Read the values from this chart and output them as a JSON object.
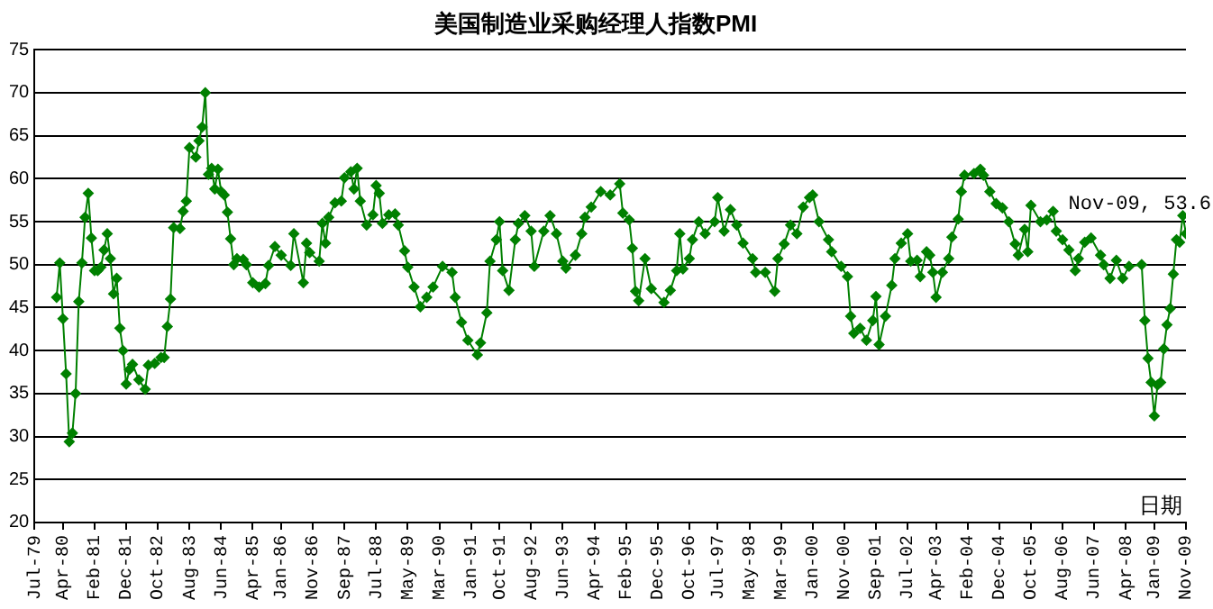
{
  "chart_data": {
    "type": "line",
    "title": "美国制造业采购经理人指数PMI",
    "xlabel": "日期",
    "xlim": [
      "1979-07",
      "2009-11"
    ],
    "xticks": [
      {
        "value": "1979-07",
        "label": "Jul-79"
      },
      {
        "value": "1980-04",
        "label": "Apr-80"
      },
      {
        "value": "1981-02",
        "label": "Feb-81"
      },
      {
        "value": "1981-12",
        "label": "Dec-81"
      },
      {
        "value": "1982-10",
        "label": "Oct-82"
      },
      {
        "value": "1983-08",
        "label": "Aug-83"
      },
      {
        "value": "1984-06",
        "label": "Jun-84"
      },
      {
        "value": "1985-04",
        "label": "Apr-85"
      },
      {
        "value": "1986-01",
        "label": "Jan-86"
      },
      {
        "value": "1986-11",
        "label": "Nov-86"
      },
      {
        "value": "1987-09",
        "label": "Sep-87"
      },
      {
        "value": "1988-07",
        "label": "Jul-88"
      },
      {
        "value": "1989-05",
        "label": "May-89"
      },
      {
        "value": "1990-03",
        "label": "Mar-90"
      },
      {
        "value": "1991-01",
        "label": "Jan-91"
      },
      {
        "value": "1991-10",
        "label": "Oct-91"
      },
      {
        "value": "1992-08",
        "label": "Aug-92"
      },
      {
        "value": "1993-06",
        "label": "Jun-93"
      },
      {
        "value": "1994-04",
        "label": "Apr-94"
      },
      {
        "value": "1995-02",
        "label": "Feb-95"
      },
      {
        "value": "1995-12",
        "label": "Dec-95"
      },
      {
        "value": "1996-10",
        "label": "Oct-96"
      },
      {
        "value": "1997-07",
        "label": "Jul-97"
      },
      {
        "value": "1998-05",
        "label": "May-98"
      },
      {
        "value": "1999-03",
        "label": "Mar-99"
      },
      {
        "value": "2000-01",
        "label": "Jan-00"
      },
      {
        "value": "2000-11",
        "label": "Nov-00"
      },
      {
        "value": "2001-09",
        "label": "Sep-01"
      },
      {
        "value": "2002-07",
        "label": "Jul-02"
      },
      {
        "value": "2003-04",
        "label": "Apr-03"
      },
      {
        "value": "2004-02",
        "label": "Feb-04"
      },
      {
        "value": "2004-12",
        "label": "Dec-04"
      },
      {
        "value": "2005-10",
        "label": "Oct-05"
      },
      {
        "value": "2006-08",
        "label": "Aug-06"
      },
      {
        "value": "2007-06",
        "label": "Jun-07"
      },
      {
        "value": "2008-04",
        "label": "Apr-08"
      },
      {
        "value": "2009-01",
        "label": "Jan-09"
      },
      {
        "value": "2009-11",
        "label": "Nov-09"
      }
    ],
    "ylim": [
      20,
      75
    ],
    "yticks": [
      20,
      25,
      30,
      35,
      40,
      45,
      50,
      55,
      60,
      65,
      70,
      75
    ],
    "grid": "y",
    "legend": false,
    "marker": "diamond",
    "line_style": "solid",
    "annotations": [
      {
        "text": "Nov-09, 53.6",
        "x": "2009-11",
        "y": 53.6
      }
    ],
    "series": [
      {
        "color": "#008000",
        "x": [
          "1980-02",
          "1980-03",
          "1980-04",
          "1980-05",
          "1980-06",
          "1980-07",
          "1980-08",
          "1980-09",
          "1980-10",
          "1980-11",
          "1980-12",
          "1981-01",
          "1981-02",
          "1981-03",
          "1981-04",
          "1981-05",
          "1981-06",
          "1981-07",
          "1981-08",
          "1981-09",
          "1981-10",
          "1981-11",
          "1981-12",
          "1982-01",
          "1982-02",
          "1982-04",
          "1982-06",
          "1982-07",
          "1982-09",
          "1982-11",
          "1982-12",
          "1983-01",
          "1983-02",
          "1983-03",
          "1983-05",
          "1983-06",
          "1983-07",
          "1983-08",
          "1983-10",
          "1983-11",
          "1983-12",
          "1984-01",
          "1984-02",
          "1984-03",
          "1984-04",
          "1984-05",
          "1984-06",
          "1984-07",
          "1984-08",
          "1984-09",
          "1984-10",
          "1984-11",
          "1985-01",
          "1985-02",
          "1985-04",
          "1985-06",
          "1985-08",
          "1985-09",
          "1985-11",
          "1986-01",
          "1986-04",
          "1986-05",
          "1986-08",
          "1986-09",
          "1986-10",
          "1987-01",
          "1987-02",
          "1987-03",
          "1987-04",
          "1987-06",
          "1987-08",
          "1987-09",
          "1987-11",
          "1987-12",
          "1988-01",
          "1988-02",
          "1988-04",
          "1988-06",
          "1988-07",
          "1988-08",
          "1988-09",
          "1988-11",
          "1989-01",
          "1989-02",
          "1989-04",
          "1989-05",
          "1989-07",
          "1989-09",
          "1989-11",
          "1990-01",
          "1990-04",
          "1990-07",
          "1990-08",
          "1990-10",
          "1990-12",
          "1991-03",
          "1991-04",
          "1991-06",
          "1991-07",
          "1991-09",
          "1991-10",
          "1991-11",
          "1992-01",
          "1992-03",
          "1992-04",
          "1992-06",
          "1992-08",
          "1992-09",
          "1992-12",
          "1993-02",
          "1993-04",
          "1993-06",
          "1993-07",
          "1993-10",
          "1993-12",
          "1994-01",
          "1994-03",
          "1994-06",
          "1994-09",
          "1994-12",
          "1995-01",
          "1995-03",
          "1995-04",
          "1995-05",
          "1995-06",
          "1995-08",
          "1995-10",
          "1996-02",
          "1996-04",
          "1996-06",
          "1996-07",
          "1996-08",
          "1996-10",
          "1996-11",
          "1997-01",
          "1997-03",
          "1997-06",
          "1997-07",
          "1997-09",
          "1997-11",
          "1998-01",
          "1998-03",
          "1998-06",
          "1998-07",
          "1998-10",
          "1999-01",
          "1999-02",
          "1999-04",
          "1999-06",
          "1999-08",
          "1999-10",
          "1999-12",
          "2000-01",
          "2000-03",
          "2000-06",
          "2000-07",
          "2000-10",
          "2000-12",
          "2001-01",
          "2001-02",
          "2001-04",
          "2001-06",
          "2001-08",
          "2001-09",
          "2001-10",
          "2001-12",
          "2002-02",
          "2002-03",
          "2002-05",
          "2002-07",
          "2002-08",
          "2002-10",
          "2002-11",
          "2003-01",
          "2003-02",
          "2003-03",
          "2003-04",
          "2003-06",
          "2003-08",
          "2003-09",
          "2003-11",
          "2003-12",
          "2004-01",
          "2004-04",
          "2004-06",
          "2004-07",
          "2004-09",
          "2004-11",
          "2005-01",
          "2005-03",
          "2005-05",
          "2005-06",
          "2005-08",
          "2005-09",
          "2005-10",
          "2006-01",
          "2006-03",
          "2006-05",
          "2006-06",
          "2006-08",
          "2006-10",
          "2006-12",
          "2007-01",
          "2007-03",
          "2007-05",
          "2007-08",
          "2007-09",
          "2007-11",
          "2008-01",
          "2008-03",
          "2008-05",
          "2008-09",
          "2008-10",
          "2008-11",
          "2008-12",
          "2009-01",
          "2009-02",
          "2009-03",
          "2009-04",
          "2009-05",
          "2009-06",
          "2009-07",
          "2009-08",
          "2009-09",
          "2009-10",
          "2009-11"
        ],
        "values": [
          46.2,
          50.2,
          43.7,
          37.3,
          29.4,
          30.4,
          35.0,
          45.7,
          50.2,
          55.5,
          58.3,
          53.1,
          49.3,
          49.3,
          49.7,
          51.7,
          53.6,
          50.7,
          46.6,
          48.4,
          42.6,
          40.0,
          36.1,
          37.8,
          38.4,
          36.6,
          35.5,
          38.3,
          38.5,
          39.2,
          39.2,
          42.8,
          46.0,
          54.3,
          54.2,
          56.2,
          57.4,
          63.6,
          62.5,
          64.4,
          66.0,
          70.0,
          60.5,
          61.2,
          58.8,
          61.1,
          58.5,
          58.1,
          56.1,
          53.0,
          50.0,
          50.7,
          50.6,
          50.0,
          47.9,
          47.4,
          47.8,
          49.9,
          52.1,
          51.1,
          49.9,
          53.6,
          47.9,
          52.5,
          51.4,
          50.4,
          54.8,
          52.5,
          55.5,
          57.2,
          57.4,
          60.1,
          60.8,
          58.8,
          61.2,
          57.4,
          54.6,
          55.8,
          59.2,
          58.3,
          54.8,
          55.8,
          55.9,
          54.6,
          51.6,
          49.7,
          47.4,
          45.1,
          46.2,
          47.4,
          49.8,
          49.1,
          46.2,
          43.3,
          41.2,
          39.5,
          40.9,
          44.4,
          50.4,
          52.9,
          55.0,
          49.3,
          47.0,
          52.9,
          54.8,
          55.7,
          53.9,
          49.8,
          53.9,
          55.7,
          53.6,
          50.4,
          49.6,
          51.1,
          53.6,
          55.5,
          56.7,
          58.5,
          58.1,
          59.4,
          56.0,
          55.2,
          51.9,
          46.9,
          45.8,
          50.7,
          47.2,
          45.6,
          47.0,
          49.3,
          53.6,
          49.5,
          50.7,
          52.9,
          55.0,
          53.6,
          55.0,
          57.8,
          53.9,
          56.4,
          54.6,
          52.5,
          50.7,
          49.1,
          49.1,
          46.9,
          50.7,
          52.4,
          54.6,
          53.6,
          56.7,
          57.8,
          58.1,
          55.0,
          52.9,
          51.5,
          49.8,
          48.6,
          44.0,
          42.0,
          42.6,
          41.2,
          43.5,
          46.3,
          40.7,
          44.0,
          47.6,
          50.7,
          52.5,
          53.6,
          50.4,
          50.5,
          48.6,
          51.5,
          51.1,
          49.1,
          46.2,
          49.1,
          50.7,
          53.2,
          55.3,
          58.5,
          60.4,
          60.6,
          61.1,
          60.4,
          58.5,
          57.1,
          56.6,
          55.0,
          52.4,
          51.1,
          54.1,
          51.5,
          56.9,
          55.0,
          55.2,
          56.2,
          53.9,
          52.9,
          51.7,
          49.3,
          50.7,
          52.6,
          53.1,
          51.1,
          50.0,
          48.4,
          50.5,
          48.4,
          49.8,
          50.0,
          43.5,
          39.1,
          36.3,
          32.4,
          36.0,
          36.3,
          40.2,
          43.0,
          44.9,
          48.9,
          52.9,
          52.6,
          55.7,
          53.6
        ]
      }
    ]
  }
}
